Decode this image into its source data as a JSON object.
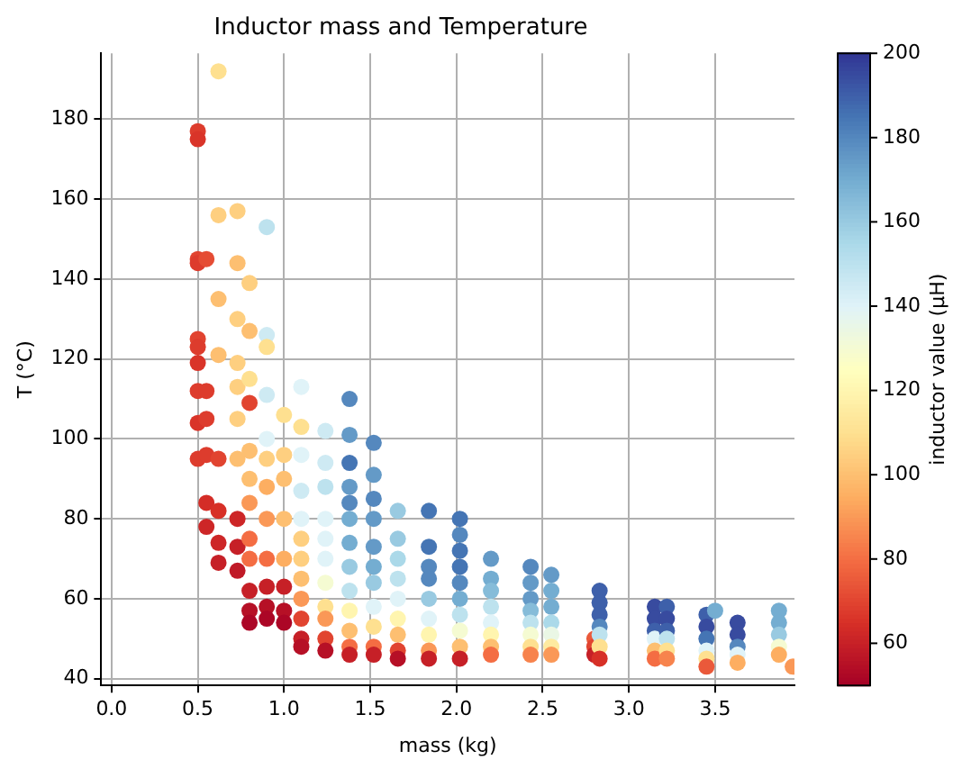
{
  "chart_data": {
    "type": "scatter",
    "title": "Inductor mass and Temperature",
    "xlabel": "mass (kg)",
    "ylabel": "T (°C)",
    "clabel": "inductor value (μH)",
    "xlim": [
      -0.06,
      3.96
    ],
    "xticks": [
      {
        "value": 0,
        "label": "0.0"
      },
      {
        "value": 0.5,
        "label": "0.5"
      },
      {
        "value": 1,
        "label": "1.0"
      },
      {
        "value": 1.5,
        "label": "1.5"
      },
      {
        "value": 2,
        "label": "2.0"
      },
      {
        "value": 2.5,
        "label": "2.5"
      },
      {
        "value": 3,
        "label": "3.0"
      },
      {
        "value": 3.5,
        "label": "3.5"
      }
    ],
    "ylim": [
      38.3,
      196.5
    ],
    "yticks": [
      40,
      60,
      80,
      100,
      120,
      140,
      160,
      180
    ],
    "clim": [
      50,
      200
    ],
    "cticks": [
      60,
      80,
      100,
      120,
      140,
      160,
      180,
      200
    ],
    "grid": true,
    "marker": "circle",
    "series": [
      {
        "x": [
          0.5,
          0.5,
          0.5,
          0.5,
          0.5,
          0.5,
          0.5,
          0.5,
          0.5,
          0.5,
          0.55,
          0.55,
          0.55,
          0.55,
          0.55,
          0.55,
          0.62,
          0.62,
          0.62,
          0.62,
          0.62,
          0.62,
          0.62,
          0.62,
          0.73,
          0.73,
          0.73,
          0.73,
          0.73,
          0.73,
          0.73,
          0.73,
          0.73,
          0.73,
          0.8,
          0.8,
          0.8,
          0.8,
          0.8,
          0.8,
          0.8,
          0.8,
          0.8,
          0.8,
          0.8,
          0.8,
          0.9,
          0.9,
          0.9,
          0.9,
          0.9,
          0.9,
          0.9,
          0.9,
          0.9,
          0.9,
          0.9,
          0.9,
          1.0,
          1.0,
          1.0,
          1.0,
          1.0,
          1.0,
          1.0,
          1.0,
          1.1,
          1.1,
          1.1,
          1.1,
          1.1,
          1.1,
          1.1,
          1.1,
          1.1,
          1.1,
          1.1,
          1.1,
          1.24,
          1.24,
          1.24,
          1.24,
          1.24,
          1.24,
          1.24,
          1.24,
          1.24,
          1.24,
          1.24,
          1.38,
          1.38,
          1.38,
          1.38,
          1.38,
          1.38,
          1.38,
          1.38,
          1.38,
          1.38,
          1.38,
          1.38,
          1.38,
          1.52,
          1.52,
          1.52,
          1.52,
          1.52,
          1.52,
          1.52,
          1.52,
          1.52,
          1.52,
          1.52,
          1.66,
          1.66,
          1.66,
          1.66,
          1.66,
          1.66,
          1.66,
          1.66,
          1.66,
          1.84,
          1.84,
          1.84,
          1.84,
          1.84,
          1.84,
          1.84,
          1.84,
          1.84,
          2.02,
          2.02,
          2.02,
          2.02,
          2.02,
          2.02,
          2.02,
          2.02,
          2.02,
          2.02,
          2.2,
          2.2,
          2.2,
          2.2,
          2.2,
          2.2,
          2.2,
          2.2,
          2.43,
          2.43,
          2.43,
          2.43,
          2.43,
          2.43,
          2.43,
          2.43,
          2.55,
          2.55,
          2.55,
          2.55,
          2.55,
          2.55,
          2.55,
          2.8,
          2.8,
          2.8,
          2.83,
          2.83,
          2.83,
          2.83,
          2.83,
          2.83,
          2.83,
          3.15,
          3.15,
          3.15,
          3.15,
          3.15,
          3.15,
          3.22,
          3.22,
          3.22,
          3.22,
          3.22,
          3.22,
          3.45,
          3.45,
          3.45,
          3.45,
          3.45,
          3.45,
          3.5,
          3.63,
          3.63,
          3.63,
          3.63,
          3.63,
          3.87,
          3.87,
          3.87,
          3.87,
          3.87,
          3.95
        ],
        "values": [
          177,
          175,
          145,
          144,
          125,
          123,
          119,
          112,
          104,
          95,
          145,
          112,
          105,
          96,
          84,
          78,
          192,
          156,
          135,
          121,
          95,
          82,
          74,
          69,
          157,
          144,
          130,
          119,
          113,
          105,
          95,
          80,
          73,
          67,
          139,
          127,
          115,
          109,
          97,
          90,
          84,
          75,
          70,
          62,
          57,
          54,
          153,
          126,
          123,
          111,
          100,
          95,
          88,
          80,
          70,
          63,
          58,
          55,
          106,
          96,
          90,
          80,
          70,
          63,
          57,
          54,
          113,
          103,
          96,
          87,
          80,
          75,
          70,
          65,
          60,
          55,
          50,
          48,
          102,
          94,
          88,
          80,
          75,
          70,
          64,
          58,
          55,
          50,
          47,
          110,
          101,
          94,
          88,
          84,
          80,
          74,
          68,
          62,
          57,
          52,
          48,
          46,
          99,
          91,
          85,
          80,
          73,
          68,
          64,
          58,
          53,
          48,
          46,
          82,
          75,
          70,
          65,
          60,
          55,
          51,
          47,
          45,
          82,
          73,
          68,
          65,
          60,
          55,
          51,
          47,
          45,
          80,
          76,
          72,
          68,
          64,
          60,
          56,
          52,
          48,
          45,
          70,
          65,
          62,
          58,
          54,
          51,
          48,
          46,
          68,
          64,
          60,
          57,
          54,
          51,
          48,
          46,
          66,
          62,
          58,
          54,
          51,
          48,
          46,
          50,
          48,
          46,
          62,
          59,
          56,
          53,
          51,
          48,
          45,
          58,
          55,
          52,
          50,
          47,
          45,
          58,
          55,
          52,
          50,
          47,
          45,
          56,
          53,
          50,
          47,
          45,
          43,
          57,
          54,
          51,
          48,
          46,
          44,
          57,
          54,
          51,
          48,
          46,
          43
        ],
        "cvalues": [
          68,
          66,
          70,
          68,
          70,
          68,
          66,
          68,
          66,
          68,
          72,
          68,
          68,
          68,
          64,
          62,
          110,
          105,
          100,
          100,
          70,
          65,
          62,
          60,
          105,
          100,
          105,
          105,
          105,
          105,
          100,
          62,
          60,
          58,
          105,
          100,
          110,
          70,
          100,
          100,
          90,
          80,
          80,
          60,
          55,
          52,
          150,
          145,
          110,
          145,
          140,
          105,
          95,
          90,
          80,
          60,
          55,
          52,
          110,
          105,
          100,
          100,
          95,
          60,
          55,
          52,
          140,
          110,
          140,
          145,
          140,
          105,
          105,
          100,
          90,
          70,
          60,
          55,
          145,
          145,
          150,
          140,
          140,
          140,
          130,
          110,
          90,
          70,
          55,
          180,
          175,
          185,
          175,
          180,
          170,
          170,
          160,
          150,
          120,
          100,
          80,
          60,
          180,
          175,
          180,
          175,
          175,
          170,
          160,
          140,
          110,
          80,
          60,
          160,
          160,
          155,
          150,
          140,
          120,
          100,
          70,
          55,
          185,
          185,
          180,
          180,
          160,
          140,
          120,
          90,
          60,
          185,
          180,
          185,
          185,
          180,
          170,
          150,
          130,
          100,
          60,
          175,
          170,
          165,
          150,
          140,
          120,
          100,
          80,
          180,
          175,
          175,
          165,
          150,
          130,
          110,
          85,
          175,
          170,
          170,
          155,
          135,
          115,
          90,
          75,
          70,
          60,
          190,
          190,
          190,
          180,
          150,
          110,
          65,
          195,
          195,
          190,
          140,
          100,
          80,
          190,
          195,
          190,
          150,
          110,
          85,
          190,
          195,
          185,
          140,
          110,
          75,
          170,
          195,
          195,
          180,
          140,
          95,
          170,
          170,
          160,
          130,
          95,
          90
        ]
      }
    ]
  }
}
